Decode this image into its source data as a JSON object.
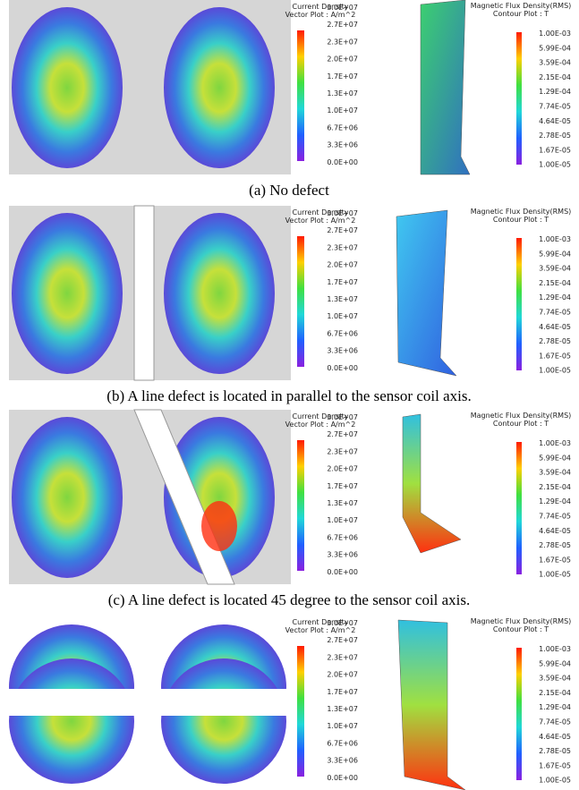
{
  "panels": [
    {
      "caption": "(a) No defect",
      "current_legend": {
        "title": "Current Density",
        "subtitle": "Vector Plot : A/m^2",
        "ticks": [
          "3.0E+07",
          "2.7E+07",
          "2.3E+07",
          "2.0E+07",
          "1.7E+07",
          "1.3E+07",
          "1.0E+07",
          "6.7E+06",
          "3.3E+06",
          "0.0E+00"
        ]
      },
      "flux_legend": {
        "title": "Magnetic Flux Density(RMS)",
        "subtitle": "Contour Plot : T",
        "ticks": [
          "1.00E-03",
          "5.99E-04",
          "3.59E-04",
          "2.15E-04",
          "1.29E-04",
          "7.74E-05",
          "4.64E-05",
          "2.78E-05",
          "1.67E-05",
          "1.00E-05"
        ]
      }
    },
    {
      "caption": "(b) A line defect is located in parallel to the sensor coil axis.",
      "current_legend": {
        "title": "Current Density",
        "subtitle": "Vector Plot : A/m^2",
        "ticks": [
          "3.0E+07",
          "2.7E+07",
          "2.3E+07",
          "2.0E+07",
          "1.7E+07",
          "1.3E+07",
          "1.0E+07",
          "6.7E+06",
          "3.3E+06",
          "0.0E+00"
        ]
      },
      "flux_legend": {
        "title": "Magnetic Flux Density(RMS)",
        "subtitle": "Contour Plot : T",
        "ticks": [
          "1.00E-03",
          "5.99E-04",
          "3.59E-04",
          "2.15E-04",
          "1.29E-04",
          "7.74E-05",
          "4.64E-05",
          "2.78E-05",
          "1.67E-05",
          "1.00E-05"
        ]
      }
    },
    {
      "caption": "(c) A line defect is located 45 degree to the sensor coil axis.",
      "current_legend": {
        "title": "Current Density",
        "subtitle": "Vector Plot : A/m^2",
        "ticks": [
          "3.0E+07",
          "2.7E+07",
          "2.3E+07",
          "2.0E+07",
          "1.7E+07",
          "1.3E+07",
          "1.0E+07",
          "6.7E+06",
          "3.3E+06",
          "0.0E+00"
        ]
      },
      "flux_legend": {
        "title": "Magnetic Flux Density(RMS)",
        "subtitle": "Contour Plot : T",
        "ticks": [
          "1.00E-03",
          "5.99E-04",
          "3.59E-04",
          "2.15E-04",
          "1.29E-04",
          "7.74E-05",
          "4.64E-05",
          "2.78E-05",
          "1.67E-05",
          "1.00E-05"
        ]
      }
    },
    {
      "current_legend": {
        "title": "Current Density",
        "subtitle": "Vector Plot : A/m^2",
        "ticks": [
          "3.0E+07",
          "2.7E+07",
          "2.3E+07",
          "2.0E+07",
          "1.7E+07",
          "1.3E+07",
          "1.0E+07",
          "6.7E+06",
          "3.3E+06",
          "0.0E+00"
        ]
      },
      "flux_legend": {
        "title": "Magnetic Flux Density(RMS)",
        "subtitle": "Contour Plot : T",
        "ticks": [
          "1.00E-03",
          "5.99E-04",
          "3.59E-04",
          "2.15E-04",
          "1.29E-04",
          "7.74E-05",
          "4.64E-05",
          "2.78E-05",
          "1.67E-05",
          "1.00E-05"
        ]
      }
    }
  ]
}
